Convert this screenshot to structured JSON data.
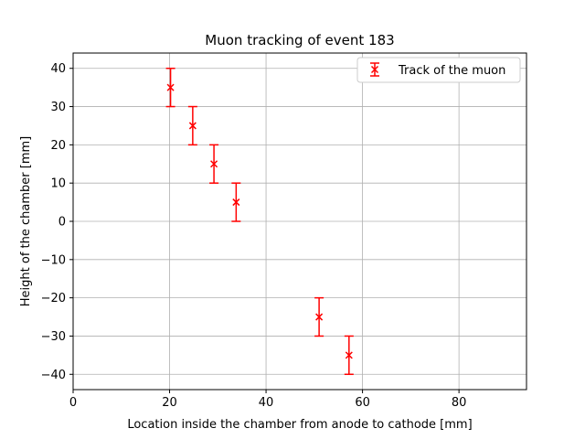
{
  "chart_data": {
    "type": "scatter",
    "title": "Muon tracking of event 183",
    "xlabel": "Location inside the chamber from anode to cathode [mm]",
    "ylabel": "Height of the chamber [mm]",
    "xlim": [
      0,
      94
    ],
    "ylim": [
      -44,
      44
    ],
    "xticks": [
      0,
      20,
      40,
      60,
      80
    ],
    "yticks": [
      -40,
      -30,
      -20,
      -10,
      0,
      10,
      20,
      30,
      40
    ],
    "grid": true,
    "legend_position": "top-right",
    "series": [
      {
        "name": "Track of the muon",
        "color": "#ff0000",
        "marker": "x",
        "x": [
          20.2,
          24.8,
          29.2,
          33.8,
          51.0,
          57.2
        ],
        "y": [
          35,
          25,
          15,
          5,
          -25,
          -35
        ],
        "yerr": [
          5,
          5,
          5,
          5,
          5,
          5
        ]
      }
    ]
  }
}
